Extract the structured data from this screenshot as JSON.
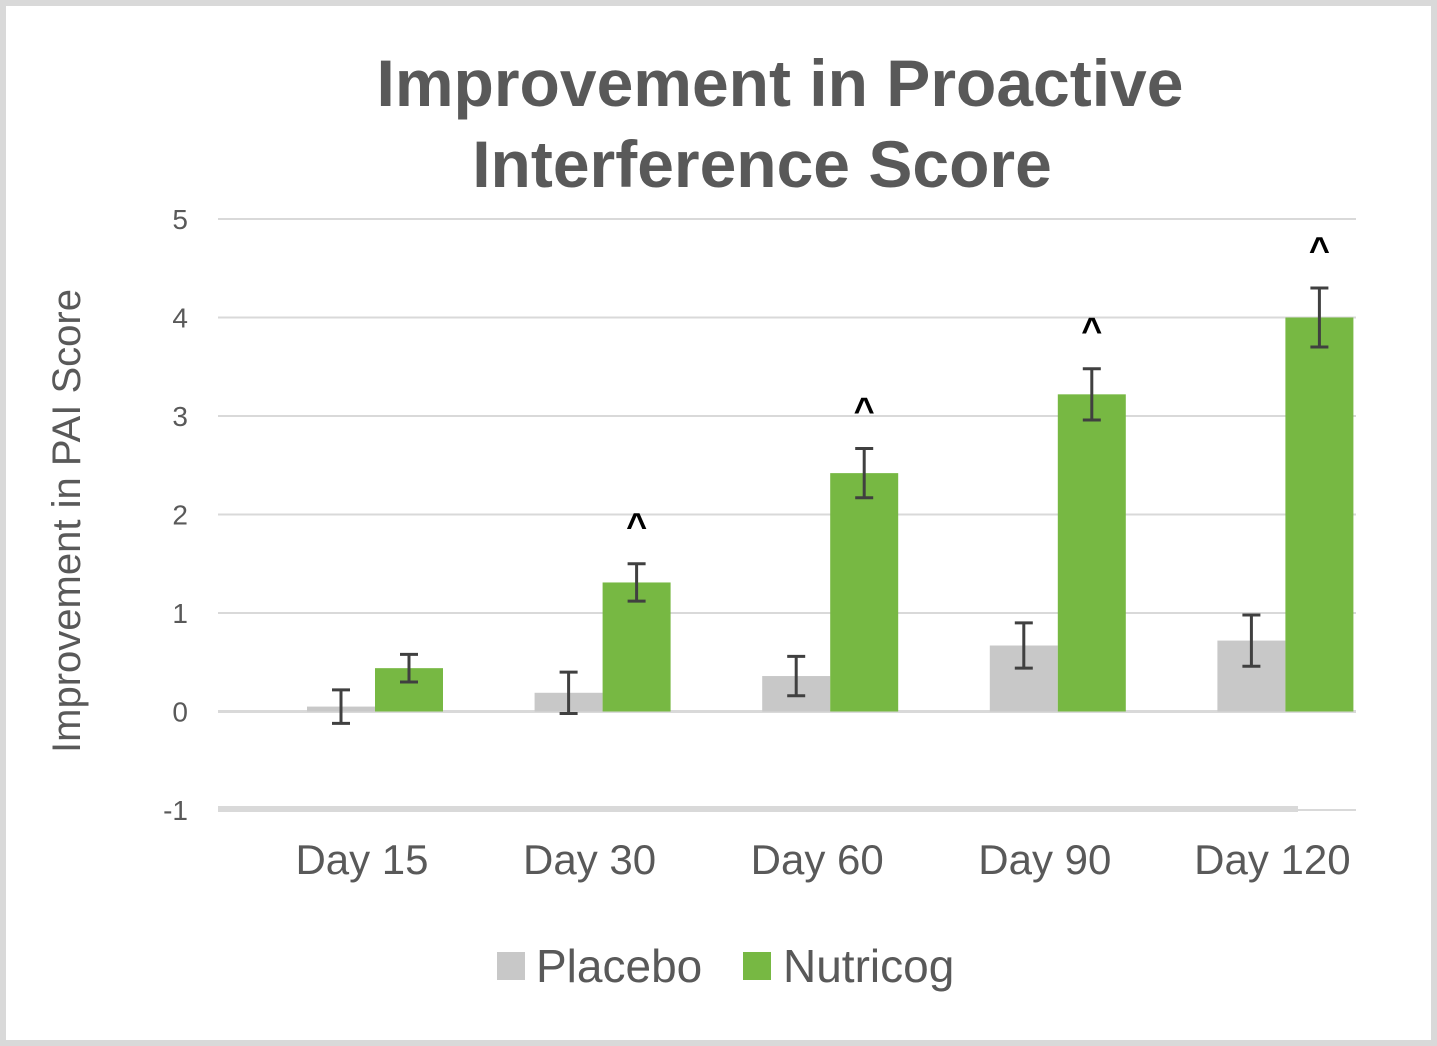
{
  "chart_data": {
    "type": "bar",
    "title_lines": [
      "Improvement in Proactive",
      "Interference Score"
    ],
    "xlabel": "",
    "ylabel": "Improvement in PAI Score",
    "ylim": [
      -1,
      5
    ],
    "yticks": [
      -1,
      0,
      1,
      2,
      3,
      4,
      5
    ],
    "grid": true,
    "categories": [
      "Day 15",
      "Day 30",
      "Day 60",
      "Day 90",
      "Day 120"
    ],
    "series": [
      {
        "name": "Placebo",
        "color": "#c8c8c8",
        "values": [
          0.05,
          0.19,
          0.36,
          0.67,
          0.72
        ],
        "error": [
          0.17,
          0.21,
          0.2,
          0.23,
          0.26
        ]
      },
      {
        "name": "Nutricog",
        "color": "#77b843",
        "values": [
          0.44,
          1.31,
          2.42,
          3.22,
          4.0
        ],
        "error": [
          0.14,
          0.19,
          0.25,
          0.26,
          0.3
        ]
      }
    ],
    "annotations": [
      {
        "category": "Day 30",
        "text": "^"
      },
      {
        "category": "Day 60",
        "text": "^"
      },
      {
        "category": "Day 90",
        "text": "^"
      },
      {
        "category": "Day 120",
        "text": "^"
      }
    ],
    "legend_position": "bottom"
  }
}
